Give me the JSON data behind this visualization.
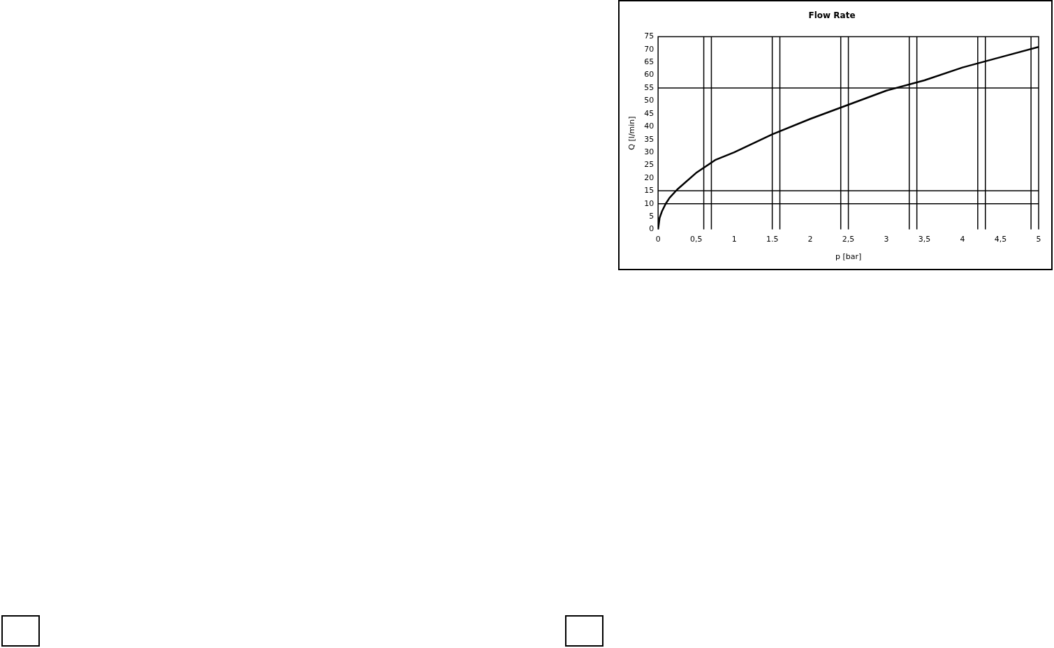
{
  "chart_data": {
    "type": "line",
    "title": "Flow Rate",
    "xlabel": "p [bar]",
    "ylabel": "Q [l/min]",
    "x": [
      0,
      0.02,
      0.05,
      0.1,
      0.15,
      0.25,
      0.5,
      0.75,
      1,
      1.5,
      2,
      2.5,
      3,
      3.5,
      4,
      4.5,
      5
    ],
    "series": [
      {
        "color": "#000000",
        "values": [
          0,
          4.5,
          7,
          10,
          12.3,
          15.5,
          22,
          27,
          30,
          37,
          43,
          48.5,
          54,
          58,
          63,
          67,
          71
        ]
      }
    ],
    "xlim": [
      0,
      5
    ],
    "xticks": [
      0,
      {
        "value": 0.5,
        "label": "0,5"
      },
      1,
      1.5,
      2,
      {
        "value": 2.5,
        "label": "2,5"
      },
      3,
      {
        "value": 3.5,
        "label": "3,5"
      },
      4,
      {
        "value": 4.5,
        "label": "4,5"
      },
      5
    ],
    "ylim": [
      0,
      75
    ],
    "yticks": [
      0,
      5,
      10,
      15,
      20,
      25,
      30,
      35,
      40,
      45,
      50,
      55,
      60,
      65,
      70,
      75
    ],
    "ref_lines": [
      {
        "axis": "y",
        "value": 10,
        "color": "#000000"
      },
      {
        "axis": "y",
        "value": 15,
        "color": "#000000"
      },
      {
        "axis": "y",
        "value": 55,
        "color": "#000000"
      },
      {
        "axis": "x",
        "value": 0.6,
        "color": "#000000"
      },
      {
        "axis": "x",
        "value": 0.7,
        "color": "#000000"
      },
      {
        "axis": "x",
        "value": 1.5,
        "color": "#000000"
      },
      {
        "axis": "x",
        "value": 1.6,
        "color": "#000000"
      },
      {
        "axis": "x",
        "value": 2.4,
        "color": "#000000"
      },
      {
        "axis": "x",
        "value": 2.5,
        "color": "#000000"
      },
      {
        "axis": "x",
        "value": 3.3,
        "color": "#000000"
      },
      {
        "axis": "x",
        "value": 3.4,
        "color": "#000000"
      },
      {
        "axis": "x",
        "value": 4.2,
        "color": "#000000"
      },
      {
        "axis": "x",
        "value": 4.3,
        "color": "#000000"
      },
      {
        "axis": "x",
        "value": 4.9,
        "color": "#000000"
      }
    ],
    "grid": false,
    "legend": false,
    "marker": "none",
    "line_style": "solid"
  }
}
